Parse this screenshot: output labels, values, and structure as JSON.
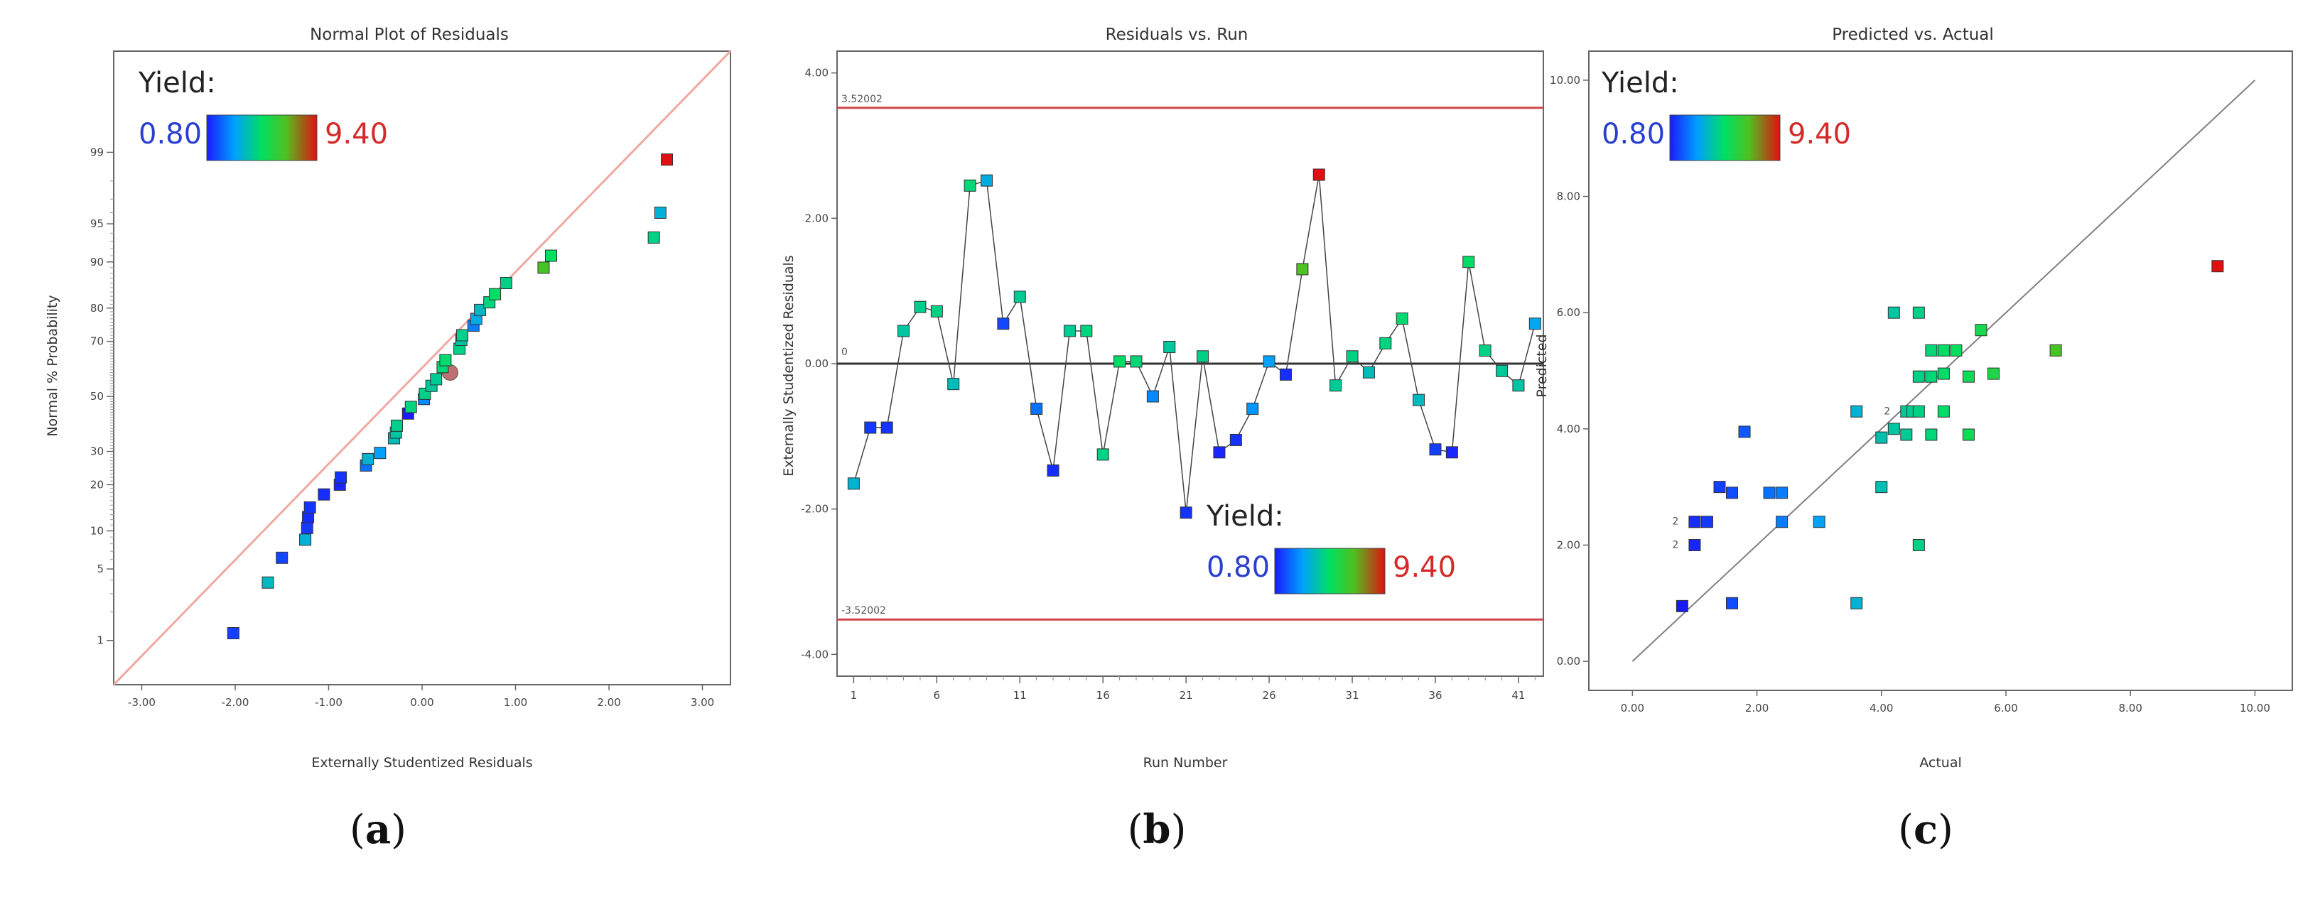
{
  "chart_data": [
    {
      "type": "scatter",
      "panel": "a",
      "title": "Normal Plot of Residuals",
      "xlabel": "Externally Studentized Residuals",
      "ylabel": "Normal % Probability",
      "xlim": [
        -3.3,
        3.3
      ],
      "x_ticks": [
        -3,
        -2,
        -1,
        0,
        1,
        2,
        3
      ],
      "x_tick_labels": [
        "-3.00",
        "-2.00",
        "-1.00",
        "0.00",
        "1.00",
        "2.00",
        "3.00"
      ],
      "y_ticks": [
        1,
        5,
        10,
        20,
        30,
        50,
        70,
        80,
        90,
        95,
        99
      ],
      "y_tick_labels": [
        "1",
        "5",
        "10",
        "20",
        "30",
        "50",
        "70",
        "80",
        "90",
        "95",
        "99"
      ],
      "reference_line": {
        "x": [
          -3.3,
          3.3
        ],
        "y": [
          0.3,
          99.95
        ]
      },
      "legend": {
        "title": "Yield:",
        "min": "0.80",
        "max": "9.40"
      },
      "points": [
        {
          "x": -2.02,
          "y": 1.2,
          "v": 1.4
        },
        {
          "x": -1.65,
          "y": 3.8,
          "v": 3.8
        },
        {
          "x": -1.5,
          "y": 6.2,
          "v": 1.5
        },
        {
          "x": -1.25,
          "y": 8.6,
          "v": 3.5
        },
        {
          "x": -1.23,
          "y": 10.5,
          "v": 1.3
        },
        {
          "x": -1.22,
          "y": 12.5,
          "v": 1.1
        },
        {
          "x": -1.2,
          "y": 14.5,
          "v": 1.2
        },
        {
          "x": -1.05,
          "y": 17.5,
          "v": 1.1
        },
        {
          "x": -0.88,
          "y": 20.0,
          "v": 1.0
        },
        {
          "x": -0.87,
          "y": 22.0,
          "v": 1.2
        },
        {
          "x": -0.6,
          "y": 25.5,
          "v": 2.2
        },
        {
          "x": -0.58,
          "y": 27.5,
          "v": 3.6
        },
        {
          "x": -0.45,
          "y": 29.5,
          "v": 3.0
        },
        {
          "x": -0.3,
          "y": 34.5,
          "v": 3.9
        },
        {
          "x": -0.28,
          "y": 36.5,
          "v": 4.2
        },
        {
          "x": -0.27,
          "y": 39.0,
          "v": 4.5
        },
        {
          "x": -0.15,
          "y": 43.5,
          "v": 0.8
        },
        {
          "x": -0.12,
          "y": 46.0,
          "v": 4.7
        },
        {
          "x": 0.02,
          "y": 49.0,
          "v": 2.6
        },
        {
          "x": 0.03,
          "y": 51.0,
          "v": 4.6
        },
        {
          "x": 0.1,
          "y": 54.0,
          "v": 4.3
        },
        {
          "x": 0.15,
          "y": 56.5,
          "v": 4.4
        },
        {
          "x": 0.3,
          "y": 59.0,
          "v": 8.2
        },
        {
          "x": 0.22,
          "y": 61.0,
          "v": 4.8
        },
        {
          "x": 0.25,
          "y": 63.5,
          "v": 4.9
        },
        {
          "x": 0.4,
          "y": 67.5,
          "v": 4.6
        },
        {
          "x": 0.42,
          "y": 70.5,
          "v": 4.2
        },
        {
          "x": 0.43,
          "y": 72.0,
          "v": 4.5
        },
        {
          "x": 0.55,
          "y": 75.0,
          "v": 2.4
        },
        {
          "x": 0.58,
          "y": 77.0,
          "v": 3.3
        },
        {
          "x": 0.62,
          "y": 79.5,
          "v": 3.8
        },
        {
          "x": 0.72,
          "y": 81.5,
          "v": 4.7
        },
        {
          "x": 0.78,
          "y": 83.5,
          "v": 5.0
        },
        {
          "x": 0.9,
          "y": 86.0,
          "v": 4.6
        },
        {
          "x": 1.3,
          "y": 89.0,
          "v": 6.8
        },
        {
          "x": 1.38,
          "y": 91.0,
          "v": 5.1
        },
        {
          "x": 2.48,
          "y": 93.5,
          "v": 4.6
        },
        {
          "x": 2.55,
          "y": 96.0,
          "v": 3.5
        },
        {
          "x": 2.62,
          "y": 98.8,
          "v": 9.4
        }
      ]
    },
    {
      "type": "line",
      "panel": "b",
      "title": "Residuals vs. Run",
      "xlabel": "Run Number",
      "ylabel": "Externally Studentized Residuals",
      "xlim": [
        0,
        42.5
      ],
      "ylim": [
        -4.3,
        4.3
      ],
      "x_ticks": [
        1,
        6,
        11,
        16,
        21,
        26,
        31,
        36,
        41
      ],
      "x_tick_labels": [
        "1",
        "6",
        "11",
        "16",
        "21",
        "26",
        "31",
        "36",
        "41"
      ],
      "y_ticks": [
        -4,
        -2,
        0,
        2,
        4
      ],
      "y_tick_labels": [
        "-4.00",
        "-2.00",
        "0.00",
        "2.00",
        "4.00"
      ],
      "limits": {
        "upper": 3.52002,
        "lower": -3.52002,
        "upper_label": "3.52002",
        "lower_label": "-3.52002",
        "zero_label": "0"
      },
      "legend": {
        "title": "Yield:",
        "min": "0.80",
        "max": "9.40"
      },
      "x": [
        1,
        2,
        3,
        4,
        5,
        6,
        7,
        8,
        9,
        10,
        11,
        12,
        13,
        14,
        15,
        16,
        17,
        18,
        19,
        20,
        21,
        22,
        23,
        24,
        25,
        26,
        27,
        28,
        29,
        30,
        31,
        32,
        33,
        34,
        35,
        36,
        37,
        38,
        39,
        40,
        41,
        42
      ],
      "y": [
        -1.65,
        -0.88,
        -0.88,
        0.45,
        0.78,
        0.72,
        -0.28,
        2.45,
        2.52,
        0.55,
        0.92,
        -0.62,
        -1.47,
        0.45,
        0.45,
        -1.25,
        0.03,
        0.03,
        -0.45,
        0.23,
        -2.05,
        0.1,
        -1.22,
        -1.05,
        -0.62,
        0.03,
        -0.15,
        1.3,
        2.6,
        -0.3,
        0.1,
        -0.12,
        0.28,
        0.62,
        -0.5,
        -1.18,
        -1.22,
        1.4,
        0.18,
        -0.1,
        -0.3,
        0.55
      ],
      "values": [
        3.6,
        1.3,
        1.2,
        4.2,
        4.5,
        4.6,
        3.9,
        4.8,
        3.4,
        1.5,
        4.4,
        2.2,
        1.1,
        4.4,
        4.7,
        4.6,
        5.0,
        4.8,
        2.6,
        4.3,
        1.2,
        4.6,
        1.0,
        1.2,
        2.8,
        3.0,
        1.1,
        6.9,
        9.4,
        4.4,
        4.6,
        3.9,
        4.7,
        4.9,
        3.8,
        1.4,
        1.0,
        5.0,
        4.6,
        4.3,
        4.2,
        3.2
      ]
    },
    {
      "type": "scatter",
      "panel": "c",
      "title": "Predicted vs. Actual",
      "xlabel": "Actual",
      "ylabel": "Predicted",
      "xlim": [
        -0.7,
        10.6
      ],
      "ylim": [
        -0.5,
        10.5
      ],
      "x_ticks": [
        0,
        2,
        4,
        6,
        8,
        10
      ],
      "x_tick_labels": [
        "0.00",
        "2.00",
        "4.00",
        "6.00",
        "8.00",
        "10.00"
      ],
      "y_ticks": [
        0,
        2,
        4,
        6,
        8,
        10
      ],
      "y_tick_labels": [
        "0.00",
        "2.00",
        "4.00",
        "6.00",
        "8.00",
        "10.00"
      ],
      "reference_line": {
        "x": [
          0,
          10
        ],
        "y": [
          0,
          10
        ]
      },
      "point_annotations": [
        {
          "label": "2",
          "x": 0.8,
          "y": 2.4
        },
        {
          "label": "2",
          "x": 0.8,
          "y": 2.0
        },
        {
          "label": "2",
          "x": 4.2,
          "y": 4.3
        }
      ],
      "legend": {
        "title": "Yield:",
        "min": "0.80",
        "max": "9.40"
      },
      "x": [
        0.8,
        1.0,
        1.0,
        1.2,
        1.0,
        1.4,
        1.6,
        1.6,
        1.8,
        2.2,
        2.4,
        2.4,
        3.0,
        3.6,
        3.6,
        4.0,
        4.0,
        4.2,
        4.2,
        4.4,
        4.4,
        4.5,
        4.6,
        4.6,
        4.6,
        4.6,
        4.8,
        4.8,
        4.8,
        5.0,
        5.0,
        5.0,
        5.2,
        5.4,
        5.4,
        5.6,
        5.8,
        6.8,
        9.4
      ],
      "y": [
        0.95,
        2.0,
        2.4,
        2.4,
        2.4,
        3.0,
        2.9,
        1.0,
        3.95,
        2.9,
        2.9,
        2.4,
        2.4,
        4.3,
        1.0,
        3.85,
        3.0,
        4.0,
        6.0,
        3.9,
        4.3,
        4.3,
        6.0,
        4.9,
        4.3,
        2.0,
        3.9,
        5.35,
        4.9,
        5.35,
        4.3,
        4.95,
        5.35,
        4.9,
        3.9,
        5.7,
        4.95,
        5.35,
        6.8
      ],
      "values": [
        0.8,
        1.0,
        1.2,
        1.3,
        1.1,
        1.4,
        1.6,
        1.6,
        1.8,
        2.2,
        2.4,
        2.4,
        3.0,
        3.6,
        3.6,
        4.0,
        4.0,
        4.2,
        4.2,
        4.4,
        4.4,
        4.5,
        4.6,
        4.6,
        4.6,
        4.6,
        4.8,
        4.8,
        4.8,
        5.0,
        5.0,
        5.0,
        5.2,
        5.4,
        5.4,
        5.6,
        5.8,
        6.8,
        9.4
      ]
    }
  ],
  "captions": {
    "a": "a",
    "b": "b",
    "c": "c"
  },
  "colors": {
    "limit_line": "#d0454a",
    "reference_line_a": "#f0a8a2",
    "reference_line_c": "#808080",
    "low": "#1f3fff",
    "high": "#e02020"
  }
}
